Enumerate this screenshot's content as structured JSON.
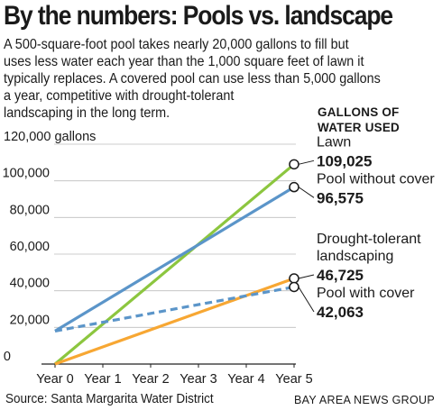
{
  "title": "By the numbers: Pools vs. landscape",
  "intro": [
    "A 500-square-foot pool takes nearly 20,000 gallons to fill but",
    "uses less water each year than the 1,000 square feet of lawn it",
    "typically replaces. A covered pool can use less than 5,000 gallons",
    "a year, competitive with drought-tolerant",
    "landscaping in the long term."
  ],
  "unit_header": [
    "GALLONS OF",
    "WATER USED"
  ],
  "source": "Source: Santa Margarita Water District",
  "credit": "BAY AREA NEWS GROUP",
  "colors": {
    "lawn": "#8cc63f",
    "pool_without_cover": "#5b95c9",
    "drought_tolerant": "#f7a733",
    "pool_with_cover": "#5b95c9",
    "grid": "#bdbdbd",
    "axis": "#222222"
  },
  "chart_data": {
    "type": "line",
    "x": [
      "Year 0",
      "Year 1",
      "Year 2",
      "Year 3",
      "Year 4",
      "Year 5"
    ],
    "ylim": [
      0,
      120000
    ],
    "yticks": [
      {
        "value": 0,
        "label": "0"
      },
      {
        "value": 20000,
        "label": "20,000"
      },
      {
        "value": 40000,
        "label": "40,000"
      },
      {
        "value": 60000,
        "label": "60,000"
      },
      {
        "value": 80000,
        "label": "80,000"
      },
      {
        "value": 100000,
        "label": "100,000"
      },
      {
        "value": 120000,
        "label": "120,000 gallons"
      }
    ],
    "grid": "horizontal",
    "series": [
      {
        "name": "Lawn",
        "key": "lawn",
        "start": 0,
        "end": 109025,
        "end_label": "109,025",
        "dashed": false,
        "marker": true,
        "label_lines": [
          "Lawn"
        ]
      },
      {
        "name": "Pool without cover",
        "key": "pool_without_cover",
        "start": 18000,
        "end": 96575,
        "end_label": "96,575",
        "dashed": false,
        "marker": true,
        "label_lines": [
          "Pool without cover"
        ]
      },
      {
        "name": "Drought-tolerant landscaping",
        "key": "drought_tolerant",
        "start": 0,
        "end": 46725,
        "end_label": "46,725",
        "dashed": false,
        "marker": true,
        "label_lines": [
          "Drought-tolerant",
          "landscaping"
        ]
      },
      {
        "name": "Pool with cover",
        "key": "pool_with_cover",
        "start": 18000,
        "end": 42063,
        "end_label": "42,063",
        "dashed": true,
        "marker": true,
        "label_lines": [
          "Pool with cover"
        ]
      }
    ]
  }
}
